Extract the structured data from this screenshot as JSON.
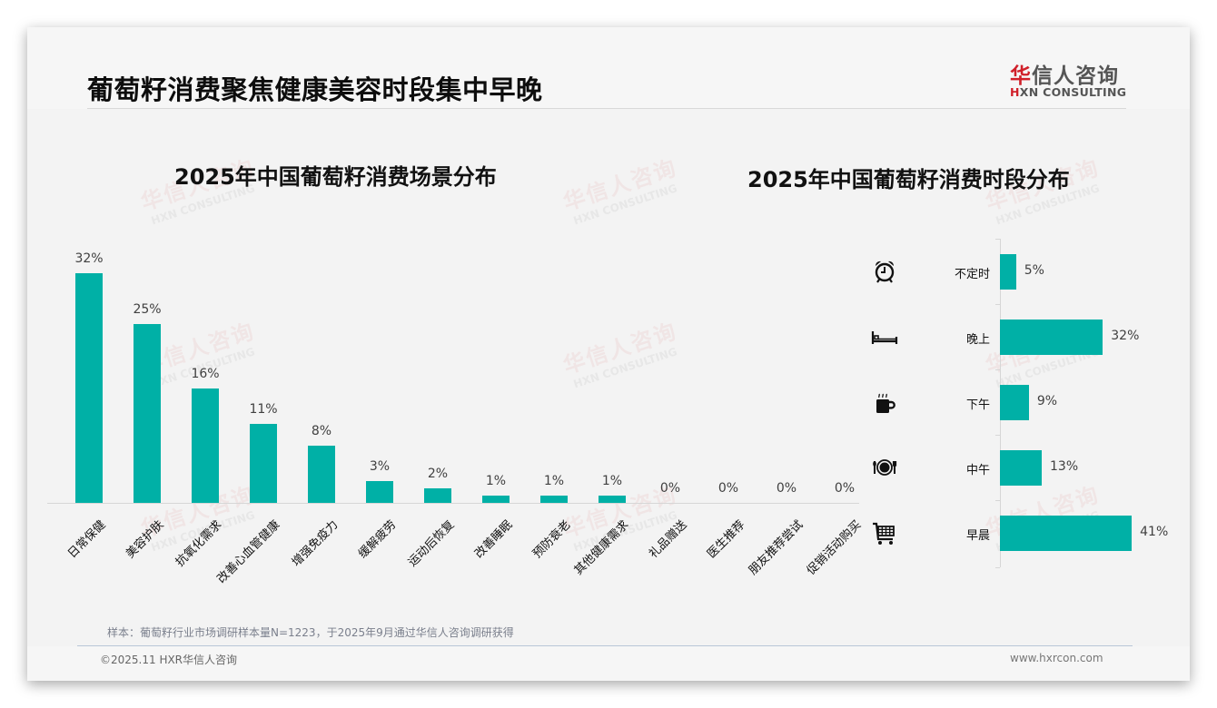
{
  "header": {
    "title": "葡萄籽消费聚焦健康美容时段集中早晚",
    "logo_cn_mark": "华",
    "logo_cn_rest": "信人咨询",
    "logo_en_mark": "H",
    "logo_en_rest": "XN CONSULTING"
  },
  "watermark": {
    "cn": "华信人咨询",
    "en": "HXN CONSULTING"
  },
  "colors": {
    "bar": "#00b0a6",
    "brand_red": "#d0202a",
    "slide_bg": "#f3f3f3"
  },
  "chart_data": [
    {
      "type": "bar",
      "title": "2025年中国葡萄籽消费场景分布",
      "xlabel": "",
      "ylabel": "",
      "ylim": [
        0,
        35
      ],
      "grid": false,
      "legend": "none",
      "categories": [
        "日常保健",
        "美容护肤",
        "抗氧化需求",
        "改善心血管健康",
        "增强免疫力",
        "缓解疲劳",
        "运动后恢复",
        "改善睡眠",
        "预防衰老",
        "其他健康需求",
        "礼品赠送",
        "医生推荐",
        "朋友推荐尝试",
        "促销活动购买"
      ],
      "values": [
        32,
        25,
        16,
        11,
        8,
        3,
        2,
        1,
        1,
        1,
        0,
        0,
        0,
        0
      ],
      "value_labels": [
        "32%",
        "25%",
        "16%",
        "11%",
        "8%",
        "3%",
        "2%",
        "1%",
        "1%",
        "1%",
        "0%",
        "0%",
        "0%",
        "0%"
      ]
    },
    {
      "type": "bar",
      "orientation": "horizontal",
      "title": "2025年中国葡萄籽消费时段分布",
      "xlabel": "",
      "ylabel": "",
      "xlim": [
        0,
        45
      ],
      "grid": false,
      "legend": "none",
      "categories": [
        "不定时",
        "晚上",
        "下午",
        "中午",
        "早晨"
      ],
      "icons": [
        "alarm-clock-icon",
        "bed-icon",
        "coffee-cup-icon",
        "plate-cutlery-icon",
        "shopping-cart-icon"
      ],
      "values": [
        5,
        32,
        9,
        13,
        41
      ],
      "value_labels": [
        "5%",
        "32%",
        "9%",
        "13%",
        "41%"
      ]
    }
  ],
  "footer": {
    "sample_note": "样本：葡萄籽行业市场调研样本量N=1223，于2025年9月通过华信人咨询调研获得",
    "copyright": "©2025.11 HXR华信人咨询",
    "website": "www.hxrcon.com"
  }
}
